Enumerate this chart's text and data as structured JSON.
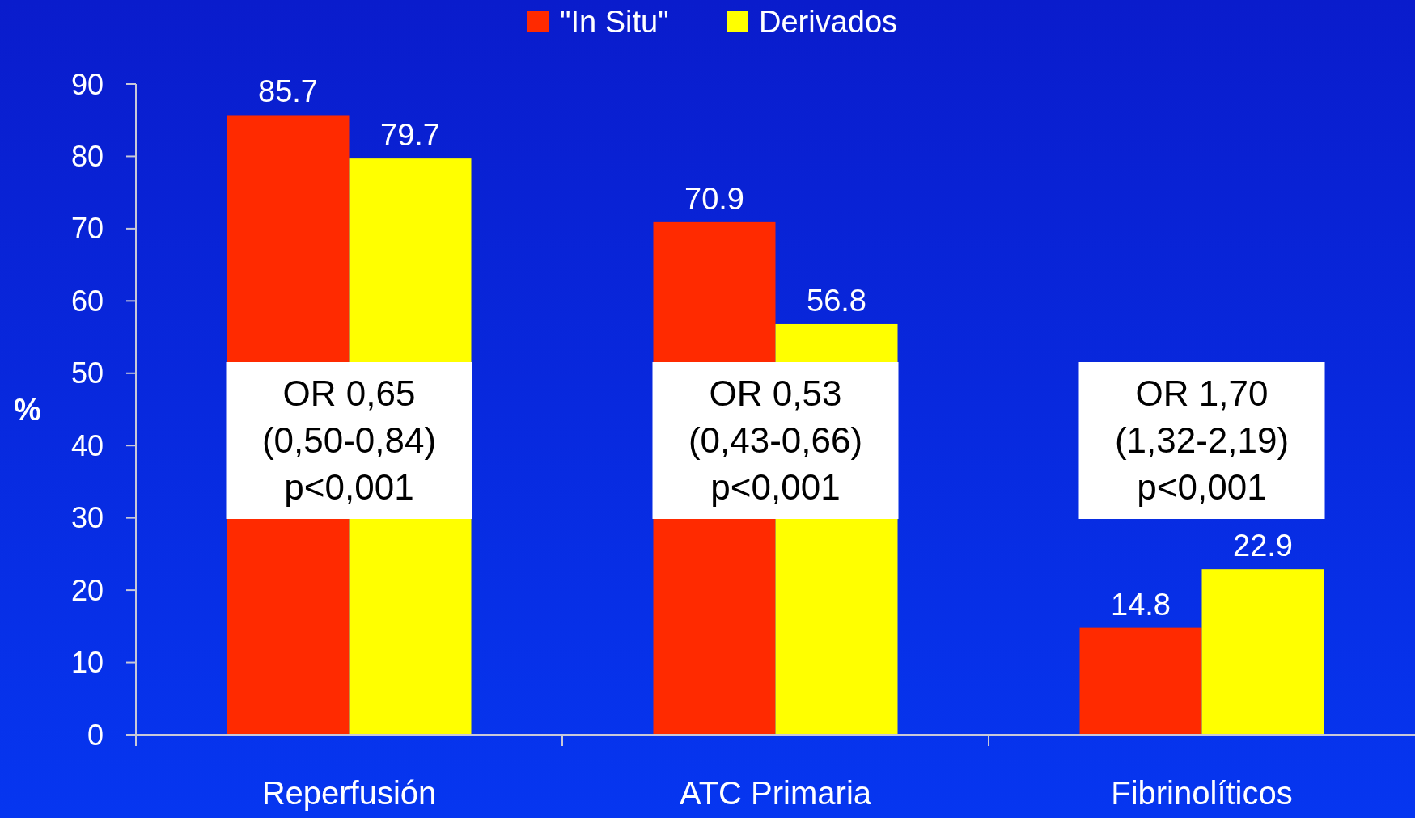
{
  "chart_data": {
    "type": "bar",
    "ylabel": "%",
    "categories": [
      "Reperfusión",
      "ATC Primaria",
      "Fibrinolíticos"
    ],
    "series": [
      {
        "name": "\"In Situ\"",
        "color": "#ff2a00",
        "values": [
          85.7,
          70.9,
          14.8
        ]
      },
      {
        "name": "Derivados",
        "color": "#ffff00",
        "values": [
          79.7,
          56.8,
          22.9
        ]
      }
    ],
    "ylim": [
      0,
      90
    ],
    "yticks": [
      0,
      10,
      20,
      30,
      40,
      50,
      60,
      70,
      80,
      90
    ],
    "grid": false,
    "legend": "top",
    "data_labels": true,
    "annotations": [
      "OR 0,65\n(0,50-0,84)\np<0,001",
      "OR 0,53\n(0,43-0,66)\np<0,001",
      "OR 1,70\n(1,32-2,19)\np<0,001"
    ]
  }
}
